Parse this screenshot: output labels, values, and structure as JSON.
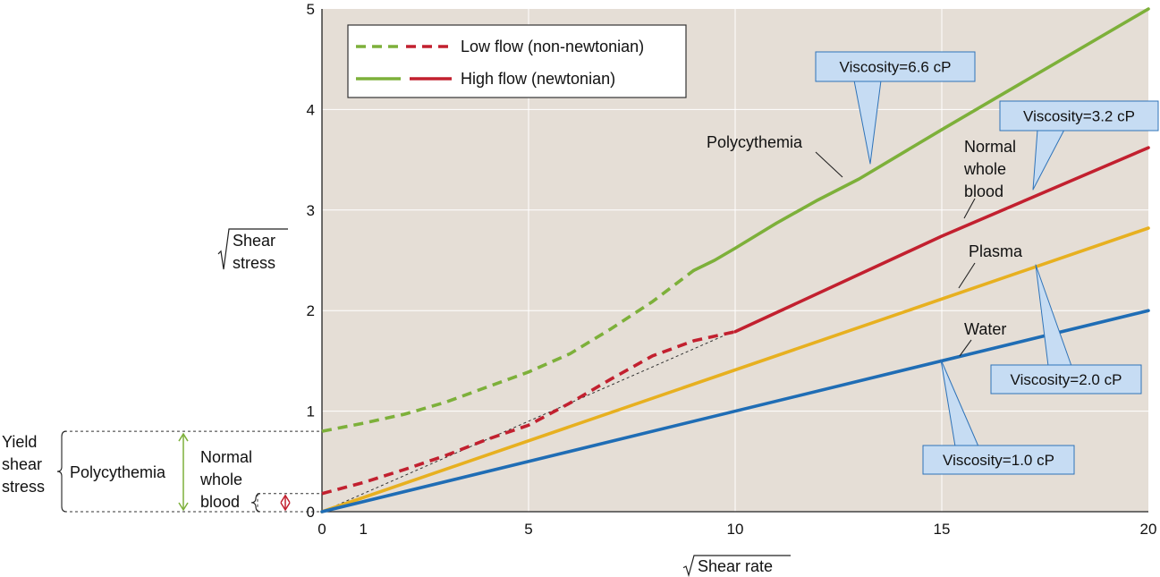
{
  "chart_data": {
    "type": "line",
    "xlabel": "Shear rate",
    "ylabel": [
      "Shear",
      "stress"
    ],
    "xlim": [
      0,
      20
    ],
    "ylim": [
      0,
      5
    ],
    "x_ticks": [
      "0",
      "1",
      "5",
      "10",
      "15",
      "20"
    ],
    "y_ticks": [
      "0",
      "1",
      "2",
      "3",
      "4",
      "5"
    ],
    "grid": true,
    "legend": {
      "position": "top-left",
      "entries": [
        {
          "label": "Low flow (non-newtonian)",
          "style": "dashed"
        },
        {
          "label": "High flow (newtonian)",
          "style": "solid"
        }
      ]
    },
    "colors": {
      "background": "#e5ded6",
      "green": "#7db03a",
      "red": "#c2202f",
      "yellow": "#e7b020",
      "blue": "#1f6db5",
      "callout": "#c6dcf3",
      "callout_border": "#2f73b8"
    },
    "series": [
      {
        "label": "Polycythemia",
        "color": "green",
        "low_flow": [
          [
            0,
            0.8
          ],
          [
            1,
            0.88
          ],
          [
            2,
            0.97
          ],
          [
            3,
            1.09
          ],
          [
            4,
            1.24
          ],
          [
            5,
            1.39
          ],
          [
            6,
            1.57
          ],
          [
            7,
            1.82
          ],
          [
            8,
            2.09
          ],
          [
            9,
            2.4
          ]
        ],
        "high_flow": [
          [
            9,
            2.4
          ],
          [
            9.5,
            2.5
          ],
          [
            10,
            2.62
          ],
          [
            11,
            2.87
          ],
          [
            12,
            3.1
          ],
          [
            13,
            3.31
          ],
          [
            15,
            3.8
          ],
          [
            20,
            5.0
          ]
        ],
        "viscosity": "Viscosity=6.6 cP"
      },
      {
        "label": [
          "Normal",
          "whole",
          "blood"
        ],
        "color": "red",
        "low_flow": [
          [
            0,
            0.18
          ],
          [
            1,
            0.29
          ],
          [
            2,
            0.42
          ],
          [
            3,
            0.56
          ],
          [
            4,
            0.72
          ],
          [
            5,
            0.86
          ],
          [
            6,
            1.08
          ],
          [
            7,
            1.32
          ],
          [
            8,
            1.55
          ],
          [
            9,
            1.7
          ],
          [
            10,
            1.79
          ]
        ],
        "high_flow": [
          [
            10,
            1.79
          ],
          [
            15,
            2.74
          ],
          [
            20,
            3.62
          ]
        ],
        "viscosity": "Viscosity=3.2 cP"
      },
      {
        "label": "Plasma",
        "color": "yellow",
        "high_flow": [
          [
            0,
            0
          ],
          [
            20,
            2.82
          ]
        ],
        "viscosity": "Viscosity=2.0 cP"
      },
      {
        "label": "Water",
        "color": "blue",
        "high_flow": [
          [
            0,
            0
          ],
          [
            20,
            2.0
          ]
        ],
        "viscosity": "Viscosity=1.0 cP"
      }
    ],
    "reference_line": [
      [
        0,
        0
      ],
      [
        10,
        1.8
      ]
    ],
    "yield_annotation": {
      "title": [
        "Yield",
        "shear",
        "stress"
      ],
      "polycythemia": "Polycythemia",
      "polycythemia_value": 0.8,
      "normal_whole_blood": [
        "Normal",
        "whole",
        "blood"
      ],
      "normal_value": 0.18
    }
  }
}
